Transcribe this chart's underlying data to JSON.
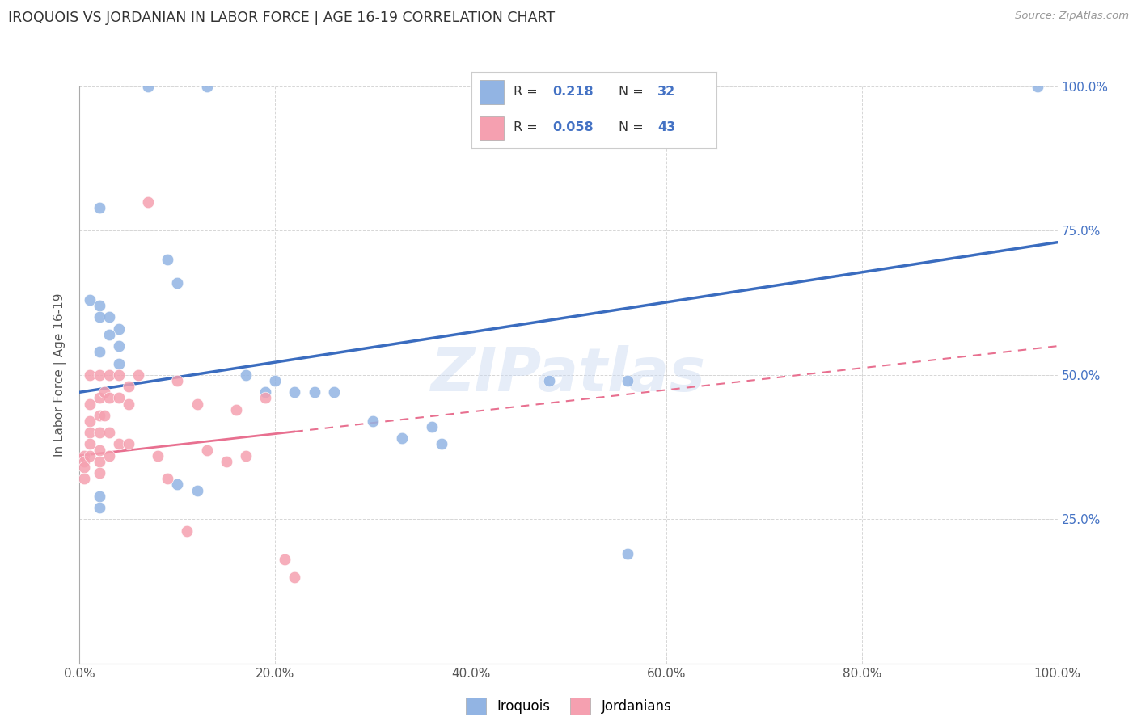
{
  "title": "IROQUOIS VS JORDANIAN IN LABOR FORCE | AGE 16-19 CORRELATION CHART",
  "source_text": "Source: ZipAtlas.com",
  "ylabel": "In Labor Force | Age 16-19",
  "xlim": [
    0,
    1.0
  ],
  "ylim": [
    0,
    1.0
  ],
  "xtick_labels": [
    "0.0%",
    "",
    "",
    "",
    "",
    "20.0%",
    "",
    "",
    "",
    "",
    "40.0%",
    "",
    "",
    "",
    "",
    "60.0%",
    "",
    "",
    "",
    "",
    "80.0%",
    "",
    "",
    "",
    "",
    "100.0%"
  ],
  "xtick_vals": [
    0.0,
    0.04,
    0.08,
    0.12,
    0.16,
    0.2,
    0.24,
    0.28,
    0.32,
    0.36,
    0.4,
    0.44,
    0.48,
    0.52,
    0.56,
    0.6,
    0.64,
    0.68,
    0.72,
    0.76,
    0.8,
    0.84,
    0.88,
    0.92,
    0.96,
    1.0
  ],
  "xtick_major_labels": [
    "0.0%",
    "20.0%",
    "40.0%",
    "60.0%",
    "80.0%",
    "100.0%"
  ],
  "xtick_major_vals": [
    0.0,
    0.2,
    0.4,
    0.6,
    0.8,
    1.0
  ],
  "ytick_labels": [
    "25.0%",
    "50.0%",
    "75.0%",
    "100.0%"
  ],
  "ytick_vals": [
    0.25,
    0.5,
    0.75,
    1.0
  ],
  "iroquois_color": "#92b4e3",
  "jordanian_color": "#f5a0b0",
  "iroquois_line_color": "#3a6cbf",
  "jordanian_line_color": "#e87090",
  "legend_iroquois": "Iroquois",
  "legend_jordanian": "Jordanians",
  "watermark": "ZIPatlas",
  "iroquois_x": [
    0.07,
    0.13,
    0.01,
    0.02,
    0.02,
    0.03,
    0.04,
    0.03,
    0.04,
    0.02,
    0.04,
    0.02,
    0.09,
    0.1,
    0.17,
    0.2,
    0.19,
    0.22,
    0.24,
    0.26,
    0.3,
    0.33,
    0.36,
    0.37,
    0.48,
    0.56,
    0.1,
    0.12,
    0.02,
    0.02,
    0.98,
    0.56
  ],
  "iroquois_y": [
    1.0,
    1.0,
    0.63,
    0.62,
    0.6,
    0.6,
    0.58,
    0.57,
    0.55,
    0.54,
    0.52,
    0.79,
    0.7,
    0.66,
    0.5,
    0.49,
    0.47,
    0.47,
    0.47,
    0.47,
    0.42,
    0.39,
    0.41,
    0.38,
    0.49,
    0.49,
    0.31,
    0.3,
    0.29,
    0.27,
    1.0,
    0.19
  ],
  "jordanian_x": [
    0.005,
    0.005,
    0.005,
    0.005,
    0.01,
    0.01,
    0.01,
    0.01,
    0.01,
    0.01,
    0.02,
    0.02,
    0.02,
    0.02,
    0.02,
    0.02,
    0.02,
    0.025,
    0.025,
    0.03,
    0.03,
    0.03,
    0.03,
    0.04,
    0.04,
    0.04,
    0.05,
    0.05,
    0.05,
    0.06,
    0.07,
    0.08,
    0.09,
    0.1,
    0.11,
    0.12,
    0.13,
    0.15,
    0.16,
    0.17,
    0.19,
    0.21,
    0.22
  ],
  "jordanian_y": [
    0.36,
    0.35,
    0.34,
    0.32,
    0.5,
    0.45,
    0.42,
    0.4,
    0.38,
    0.36,
    0.5,
    0.46,
    0.43,
    0.4,
    0.37,
    0.35,
    0.33,
    0.47,
    0.43,
    0.5,
    0.46,
    0.4,
    0.36,
    0.5,
    0.46,
    0.38,
    0.48,
    0.45,
    0.38,
    0.5,
    0.8,
    0.36,
    0.32,
    0.49,
    0.23,
    0.45,
    0.37,
    0.35,
    0.44,
    0.36,
    0.46,
    0.18,
    0.15
  ],
  "iroquois_line_x0": 0.0,
  "iroquois_line_y0": 0.47,
  "iroquois_line_x1": 1.0,
  "iroquois_line_y1": 0.73,
  "jordanian_line_x0": 0.0,
  "jordanian_line_y0": 0.36,
  "jordanian_line_x1": 1.0,
  "jordanian_line_y1": 0.55
}
